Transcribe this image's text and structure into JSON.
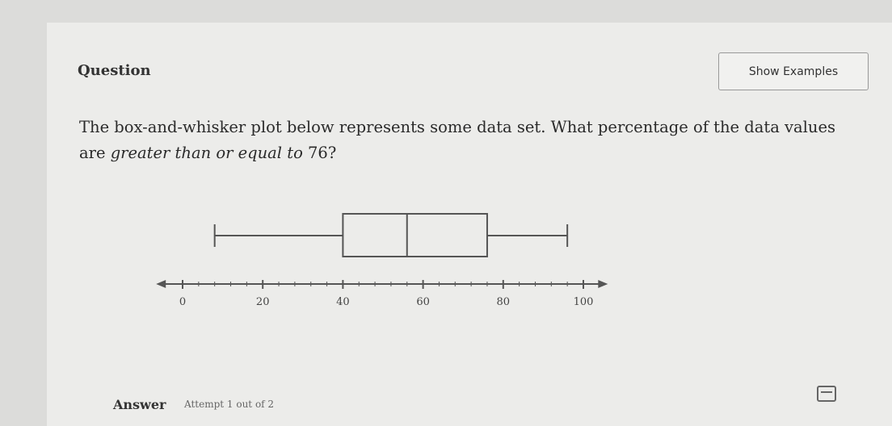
{
  "question": {
    "label": "Question",
    "show_examples": "Show Examples",
    "text_before": "The box-and-whisker plot below represents some data set. What percentage of the data values are ",
    "text_italic": "greater than or equal to",
    "text_after": " 76?"
  },
  "answer": {
    "label": "Answer",
    "attempt": "Attempt 1 out of 2"
  },
  "icons": {
    "calculator": "calculator-icon"
  },
  "chart_data": {
    "type": "boxplot",
    "min": 8,
    "q1": 40,
    "median": 56,
    "q3": 76,
    "max": 96,
    "xlim": [
      0,
      100
    ],
    "major_ticks": [
      0,
      20,
      40,
      60,
      80,
      100
    ],
    "tick_labels": [
      "0",
      "20",
      "40",
      "60",
      "80",
      "100"
    ],
    "minor_tick_step": 4
  }
}
